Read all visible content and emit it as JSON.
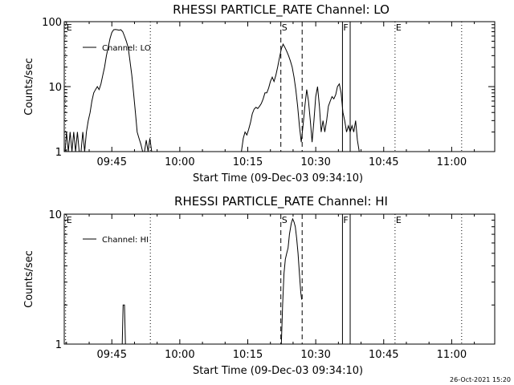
{
  "timestamp": "26-Oct-2021 15:20",
  "chart_data": [
    {
      "type": "line",
      "title": "RHESSI PARTICLE_RATE Channel: LO",
      "xlabel": "Start Time (09-Dec-03 09:34:10)",
      "ylabel": "Counts/sec",
      "y_scale": "log",
      "ylim": [
        1,
        100
      ],
      "y_ticks": [
        {
          "v": 1,
          "label": "1"
        },
        {
          "v": 10,
          "label": "10"
        },
        {
          "v": 100,
          "label": "100"
        }
      ],
      "xlim_minutes": [
        -10.5,
        84.5
      ],
      "x_ticks": [
        {
          "v": 0,
          "label": "09:45"
        },
        {
          "v": 15,
          "label": "10:00"
        },
        {
          "v": 30,
          "label": "10:15"
        },
        {
          "v": 45,
          "label": "10:30"
        },
        {
          "v": 60,
          "label": "10:45"
        },
        {
          "v": 75,
          "label": "11:00"
        }
      ],
      "legend": {
        "label": "Channel: LO",
        "position": "top-left"
      },
      "markers": [
        {
          "label": "E",
          "x": -10.2,
          "style": "dotted"
        },
        {
          "label": "",
          "x": 8.5,
          "style": "dotted"
        },
        {
          "label": "S",
          "x": 37.3,
          "style": "dashed"
        },
        {
          "label": "",
          "x": 42.0,
          "style": "dashed"
        },
        {
          "label": "F",
          "x": 50.9,
          "style": "solid"
        },
        {
          "label": "",
          "x": 52.6,
          "style": "solid"
        },
        {
          "label": "E",
          "x": 62.5,
          "style": "dotted"
        },
        {
          "label": "",
          "x": 77.2,
          "style": "dotted"
        }
      ],
      "series": [
        {
          "segments": [
            [
              [
                -10.3,
                1
              ],
              [
                -10,
                2
              ],
              [
                -9.6,
                1
              ],
              [
                -9.2,
                2
              ],
              [
                -8.8,
                1
              ],
              [
                -8.4,
                2
              ],
              [
                -8.0,
                1
              ],
              [
                -7.6,
                2
              ],
              [
                -7.2,
                1
              ],
              [
                -6.8,
                1
              ],
              [
                -6.4,
                2
              ],
              [
                -6.0,
                1
              ],
              [
                -5.6,
                2
              ],
              [
                -5.2,
                3
              ],
              [
                -4.8,
                4
              ],
              [
                -4.4,
                6
              ],
              [
                -4.0,
                8
              ],
              [
                -3.6,
                9
              ],
              [
                -3.2,
                10
              ],
              [
                -2.8,
                9
              ],
              [
                -2.4,
                11
              ],
              [
                -2.0,
                15
              ],
              [
                -1.6,
                20
              ],
              [
                -1.2,
                30
              ],
              [
                -0.8,
                40
              ],
              [
                -0.4,
                55
              ],
              [
                0,
                68
              ],
              [
                0.4,
                75
              ],
              [
                0.8,
                76
              ],
              [
                1.2,
                75
              ],
              [
                1.6,
                74
              ],
              [
                2.0,
                75
              ],
              [
                2.4,
                70
              ],
              [
                2.8,
                60
              ],
              [
                3.2,
                50
              ],
              [
                3.6,
                40
              ],
              [
                4.0,
                25
              ],
              [
                4.4,
                15
              ],
              [
                4.8,
                8
              ],
              [
                5.2,
                4
              ],
              [
                5.6,
                2
              ],
              [
                6.0,
                1.6
              ],
              [
                6.4,
                1.3
              ],
              [
                6.8,
                1
              ],
              [
                7.2,
                1
              ],
              [
                7.6,
                1.5
              ],
              [
                8.0,
                1
              ],
              [
                8.4,
                1.6
              ],
              [
                8.8,
                1
              ]
            ],
            [
              [
                28.6,
                1
              ],
              [
                29.0,
                1.6
              ],
              [
                29.4,
                2
              ],
              [
                29.8,
                1.8
              ],
              [
                30.2,
                2.2
              ],
              [
                30.6,
                2.8
              ],
              [
                31.0,
                3.8
              ],
              [
                31.4,
                4.5
              ],
              [
                31.8,
                4.8
              ],
              [
                32.2,
                4.6
              ],
              [
                32.6,
                5
              ],
              [
                33.0,
                5.5
              ],
              [
                33.4,
                6.5
              ],
              [
                33.8,
                8
              ],
              [
                34.2,
                8
              ],
              [
                34.6,
                9.5
              ],
              [
                35.0,
                12
              ],
              [
                35.4,
                14
              ],
              [
                35.8,
                12
              ],
              [
                36.2,
                15
              ],
              [
                36.6,
                20
              ],
              [
                37.0,
                28
              ],
              [
                37.4,
                38
              ],
              [
                37.8,
                45
              ],
              [
                38.2,
                40
              ],
              [
                38.6,
                35
              ],
              [
                39.0,
                30
              ],
              [
                39.4,
                25
              ],
              [
                39.8,
                20
              ],
              [
                40.2,
                14
              ],
              [
                40.6,
                9
              ],
              [
                41.0,
                5
              ],
              [
                41.4,
                2.5
              ],
              [
                41.8,
                1.4
              ],
              [
                42.2,
                2.5
              ],
              [
                42.6,
                5
              ],
              [
                43.0,
                9
              ],
              [
                43.4,
                6
              ],
              [
                43.8,
                3
              ],
              [
                44.2,
                1.4
              ],
              [
                44.6,
                3
              ],
              [
                45.0,
                7
              ],
              [
                45.4,
                10
              ],
              [
                45.8,
                5
              ],
              [
                46.2,
                2
              ],
              [
                46.6,
                3
              ],
              [
                47.0,
                2
              ],
              [
                47.4,
                3
              ],
              [
                47.8,
                5
              ],
              [
                48.2,
                6
              ],
              [
                48.6,
                7
              ],
              [
                49.0,
                6.5
              ],
              [
                49.4,
                7.5
              ],
              [
                49.8,
                10
              ],
              [
                50.2,
                11
              ],
              [
                50.6,
                8
              ],
              [
                51.0,
                4
              ],
              [
                51.4,
                3
              ],
              [
                51.8,
                2
              ],
              [
                52.2,
                2.5
              ],
              [
                52.6,
                2
              ],
              [
                53.0,
                2.5
              ],
              [
                53.4,
                2
              ],
              [
                53.8,
                3
              ],
              [
                54.2,
                1.5
              ],
              [
                54.6,
                1
              ]
            ]
          ]
        }
      ]
    },
    {
      "type": "line",
      "title": "RHESSI PARTICLE_RATE Channel: HI",
      "xlabel": "Start Time (09-Dec-03 09:34:10)",
      "ylabel": "Counts/sec",
      "y_scale": "log",
      "ylim": [
        1,
        10
      ],
      "y_ticks": [
        {
          "v": 1,
          "label": "1"
        },
        {
          "v": 10,
          "label": "10"
        }
      ],
      "xlim_minutes": [
        -10.5,
        84.5
      ],
      "x_ticks": [
        {
          "v": 0,
          "label": "09:45"
        },
        {
          "v": 15,
          "label": "10:00"
        },
        {
          "v": 30,
          "label": "10:15"
        },
        {
          "v": 45,
          "label": "10:30"
        },
        {
          "v": 60,
          "label": "10:45"
        },
        {
          "v": 75,
          "label": "11:00"
        }
      ],
      "legend": {
        "label": "Channel: HI",
        "position": "top-left"
      },
      "markers": [
        {
          "label": "E",
          "x": -10.2,
          "style": "dotted"
        },
        {
          "label": "",
          "x": 8.5,
          "style": "dotted"
        },
        {
          "label": "S",
          "x": 37.3,
          "style": "dashed"
        },
        {
          "label": "",
          "x": 42.0,
          "style": "dashed"
        },
        {
          "label": "F",
          "x": 50.9,
          "style": "solid"
        },
        {
          "label": "",
          "x": 52.6,
          "style": "solid"
        },
        {
          "label": "E",
          "x": 62.5,
          "style": "dotted"
        },
        {
          "label": "",
          "x": 77.2,
          "style": "dotted"
        }
      ],
      "series": [
        {
          "segments": [
            [
              [
                2.3,
                1
              ],
              [
                2.5,
                2
              ],
              [
                2.8,
                2
              ],
              [
                3.0,
                1
              ]
            ],
            [
              [
                37.4,
                1
              ],
              [
                37.7,
                2
              ],
              [
                38.0,
                3.5
              ],
              [
                38.3,
                4.5
              ],
              [
                38.6,
                5
              ],
              [
                38.9,
                5.5
              ],
              [
                39.2,
                7
              ],
              [
                39.6,
                8.5
              ],
              [
                39.9,
                9.2
              ],
              [
                40.2,
                8.7
              ],
              [
                40.5,
                8
              ],
              [
                40.8,
                6.5
              ],
              [
                41.1,
                5
              ],
              [
                41.4,
                3.5
              ],
              [
                41.7,
                2.5
              ],
              [
                41.9,
                2.2
              ]
            ]
          ]
        }
      ]
    }
  ]
}
